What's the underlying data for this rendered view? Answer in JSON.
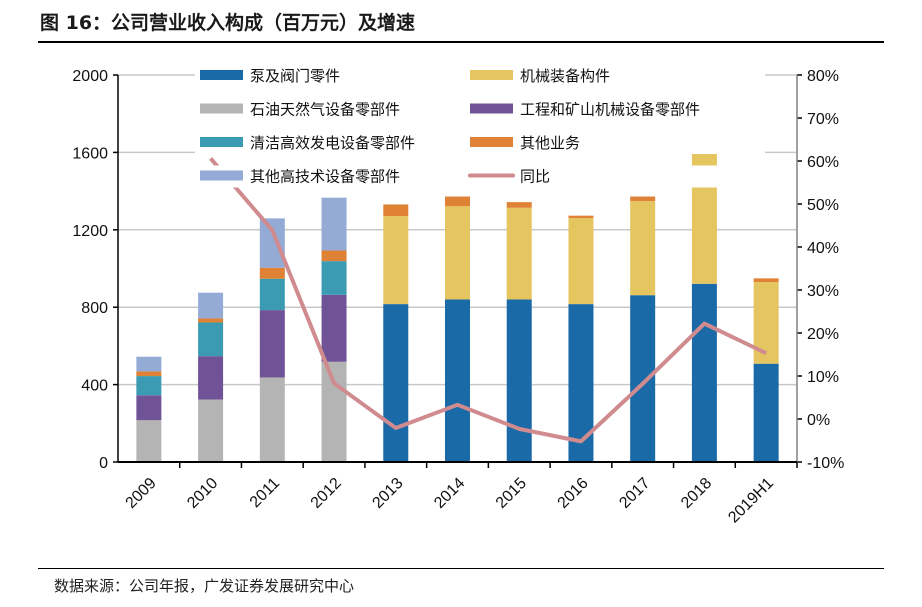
{
  "title": "图 16：公司营业收入构成（百万元）及增速",
  "source": "数据来源：公司年报，广发证券发展研究中心",
  "chart_data": {
    "type": "bar",
    "stacked": true,
    "categories": [
      "2009",
      "2010",
      "2011",
      "2012",
      "2013",
      "2014",
      "2015",
      "2016",
      "2017",
      "2018",
      "2019H1"
    ],
    "series": [
      {
        "name": "石油天然气设备零部件",
        "color": "#b4b4b4",
        "values": [
          216,
          323,
          437,
          518,
          0,
          0,
          0,
          0,
          0,
          0,
          0
        ]
      },
      {
        "name": "工程和矿山机械设备零部件",
        "color": "#705396",
        "values": [
          129,
          224,
          348,
          346,
          0,
          0,
          0,
          0,
          0,
          0,
          0
        ]
      },
      {
        "name": "清洁高效发电设备零部件",
        "color": "#3b9bb2",
        "values": [
          99,
          174,
          162,
          174,
          0,
          0,
          0,
          0,
          0,
          0,
          0
        ]
      },
      {
        "name": "泵及阀门零件",
        "color": "#1a6aa8",
        "values": [
          0,
          0,
          0,
          0,
          816,
          840,
          840,
          816,
          862,
          921,
          508
        ]
      },
      {
        "name": "机械装备构件",
        "color": "#e4c560",
        "values": [
          0,
          0,
          0,
          0,
          455,
          482,
          474,
          444,
          486,
          720,
          422
        ]
      },
      {
        "name": "其他业务",
        "color": "#e08236",
        "values": [
          24,
          21,
          57,
          55,
          60,
          50,
          29,
          13,
          24,
          38,
          19
        ]
      },
      {
        "name": "其他高技术设备零部件",
        "color": "#94abd6",
        "values": [
          76,
          133,
          255,
          273,
          0,
          0,
          0,
          0,
          0,
          0,
          0
        ]
      }
    ],
    "line": {
      "name": "同比",
      "color": "#d08b8f",
      "axis": "right",
      "values": [
        null,
        60.6,
        43.9,
        8.3,
        -2.1,
        3.3,
        -2.3,
        -5.2,
        8.2,
        22.2,
        15.3
      ]
    },
    "legend": [
      "泵及阀门零件",
      "机械装备构件",
      "石油天然气设备零部件",
      "工程和矿山机械设备零部件",
      "清洁高效发电设备零部件",
      "其他业务",
      "其他高技术设备零部件",
      "同比"
    ],
    "legend_placement": "top",
    "ylim": [
      0,
      2000
    ],
    "yticks": [
      "0",
      "400",
      "800",
      "1200",
      "1600",
      "2000"
    ],
    "y2lim": [
      -10,
      80
    ],
    "y2ticks": [
      "-10%",
      "0%",
      "10%",
      "20%",
      "30%",
      "40%",
      "50%",
      "60%",
      "70%",
      "80%"
    ],
    "grid": true
  }
}
